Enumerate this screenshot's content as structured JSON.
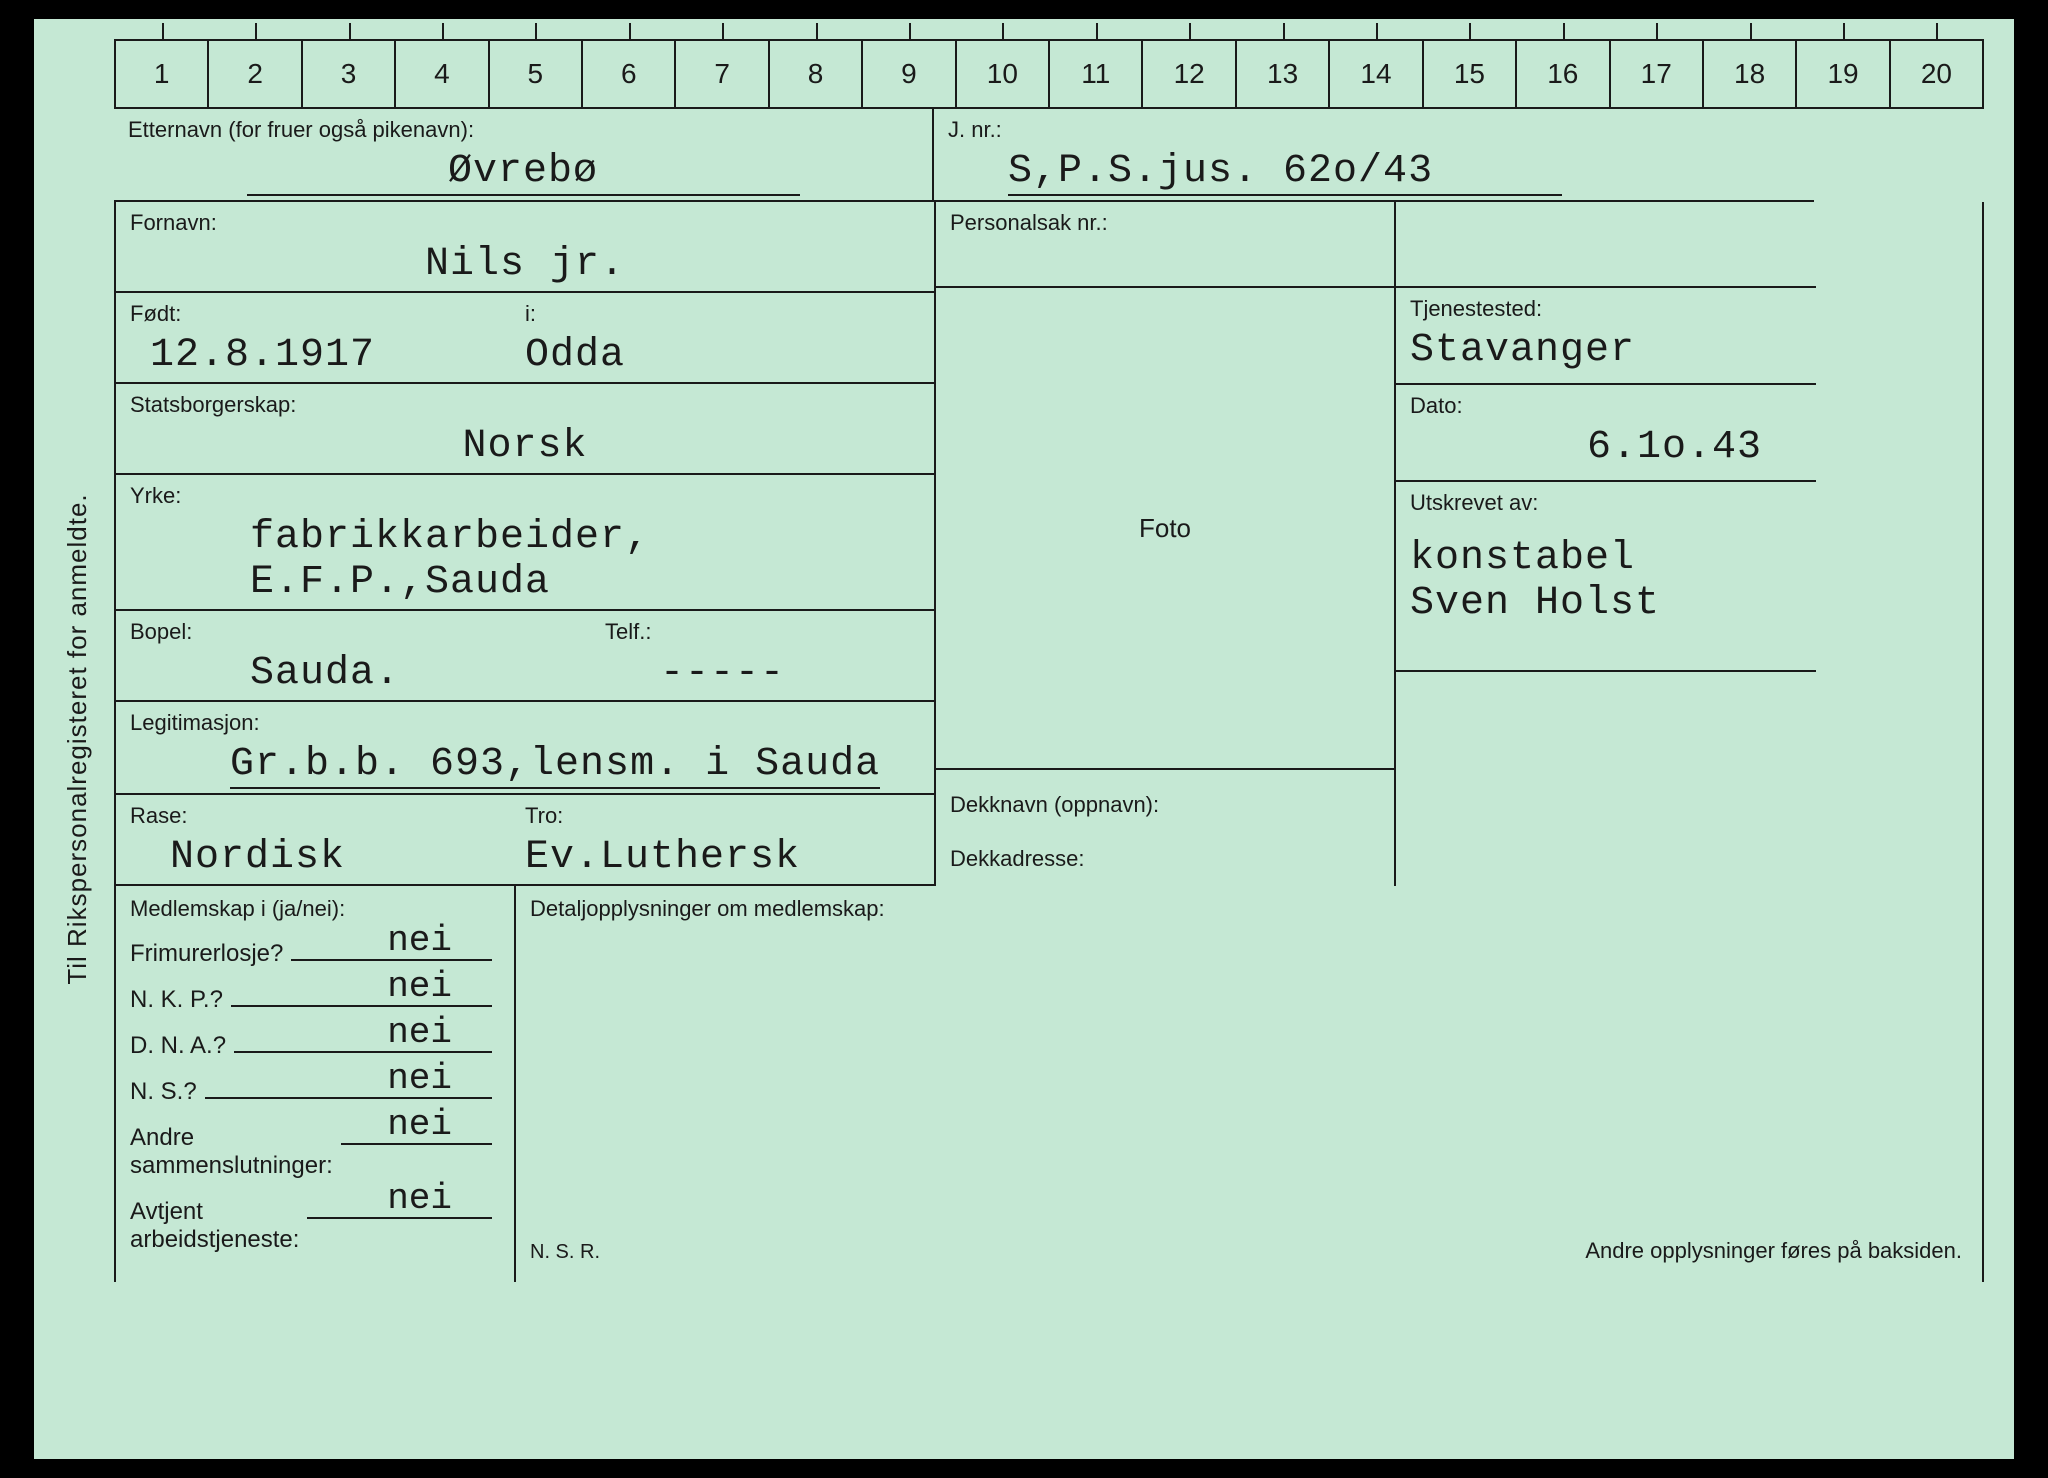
{
  "colors": {
    "card_bg": "#c5e8d4",
    "text": "#1a1a1a",
    "border": "#1a1a1a"
  },
  "side_label": "Til Rikspersonalregisteret for anmeldte.",
  "ruler": [
    "1",
    "2",
    "3",
    "4",
    "5",
    "6",
    "7",
    "8",
    "9",
    "10",
    "11",
    "12",
    "13",
    "14",
    "15",
    "16",
    "17",
    "18",
    "19",
    "20"
  ],
  "labels": {
    "etternavn": "Etternavn (for fruer også pikenavn):",
    "fornavn": "Fornavn:",
    "fodt": "Født:",
    "i": "i:",
    "statsborgerskap": "Statsborgerskap:",
    "yrke": "Yrke:",
    "bopel": "Bopel:",
    "telf": "Telf.:",
    "legitimasjon": "Legitimasjon:",
    "rase": "Rase:",
    "tro": "Tro:",
    "medlemskap": "Medlemskap i (ja/nei):",
    "detaljopplysninger": "Detaljopplysninger om medlemskap:",
    "jnr": "J. nr.:",
    "personalsak": "Personalsak nr.:",
    "tjenestested": "Tjenestested:",
    "dato": "Dato:",
    "utskrevet": "Utskrevet av:",
    "foto": "Foto",
    "dekknavn": "Dekknavn (oppnavn):",
    "dekkadresse": "Dekkadresse:",
    "footer_right": "Andre opplysninger føres på baksiden.",
    "nsr": "N. S. R."
  },
  "values": {
    "etternavn": "Øvrebø",
    "fornavn": "Nils jr.",
    "fodt": "12.8.1917",
    "i": "Odda",
    "statsborgerskap": "Norsk",
    "yrke": "fabrikkarbeider, E.F.P.,Sauda",
    "bopel": "Sauda.",
    "telf": "-----",
    "legitimasjon": "Gr.b.b. 693,lensm. i Sauda",
    "rase": "Nordisk",
    "tro": "Ev.Luthersk",
    "jnr": "S,P.S.jus. 62o/43",
    "tjenestested": "Stavanger",
    "dato": "6.1o.43",
    "utskrevet": "konstabel\nSven Holst"
  },
  "membership": [
    {
      "label": "Frimurerlosje?",
      "value": "nei"
    },
    {
      "label": "N. K. P.?",
      "value": "nei"
    },
    {
      "label": "D. N. A.?",
      "value": "nei"
    },
    {
      "label": "N. S.?",
      "value": "nei"
    },
    {
      "label": "Andre\nsammenslutninger:",
      "value": "nei"
    },
    {
      "label": "Avtjent\narbeidstjeneste:",
      "value": "nei"
    }
  ]
}
